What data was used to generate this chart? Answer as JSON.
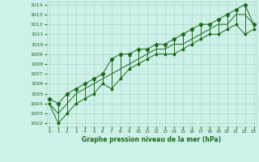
{
  "title": "Graphe pression niveau de la mer (hPa)",
  "background_color": "#cdf0e8",
  "grid_color": "#b0d8c8",
  "line_color": "#1a6b1a",
  "marker_color": "#1a6b1a",
  "label_color": "#1a6b1a",
  "hours": [
    0,
    1,
    2,
    3,
    4,
    5,
    6,
    7,
    8,
    9,
    10,
    11,
    12,
    13,
    14,
    15,
    16,
    17,
    18,
    19,
    20,
    21,
    22,
    23
  ],
  "pressure_min": [
    1004.0,
    1002.0,
    1003.0,
    1004.0,
    1004.5,
    1005.0,
    1006.0,
    1005.5,
    1006.5,
    1007.5,
    1008.0,
    1008.5,
    1009.0,
    1009.0,
    1009.0,
    1009.5,
    1010.0,
    1010.5,
    1011.0,
    1011.0,
    1011.5,
    1012.0,
    1011.0,
    1011.5
  ],
  "pressure_max": [
    1004.5,
    1004.0,
    1005.0,
    1005.5,
    1006.0,
    1006.5,
    1007.0,
    1008.5,
    1009.0,
    1009.0,
    1009.5,
    1009.5,
    1010.0,
    1010.0,
    1010.5,
    1011.0,
    1011.5,
    1012.0,
    1012.0,
    1012.5,
    1013.0,
    1013.5,
    1014.0,
    1012.0
  ],
  "pressure_avg": [
    1004.0,
    1003.0,
    1004.0,
    1005.0,
    1005.5,
    1006.0,
    1006.5,
    1007.0,
    1007.5,
    1008.0,
    1008.5,
    1009.0,
    1009.5,
    1009.5,
    1010.0,
    1010.0,
    1010.5,
    1011.0,
    1011.5,
    1012.0,
    1012.0,
    1013.0,
    1013.0,
    1012.0
  ],
  "ylim_min": 1002,
  "ylim_max": 1014,
  "ytick_min": 1002,
  "ytick_max": 1014,
  "xlim_min": 0,
  "xlim_max": 23
}
